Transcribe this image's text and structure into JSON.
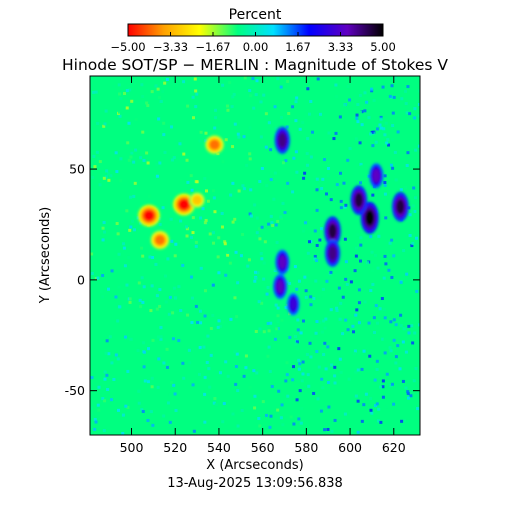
{
  "colorbar": {
    "label": "Percent",
    "ticks": [
      "−5.00",
      "−3.33",
      "−1.67",
      "0.00",
      "1.67",
      "3.33",
      "5.00"
    ],
    "min": -5,
    "max": 5
  },
  "chart_data": {
    "type": "heatmap",
    "title": "Hinode SOT/SP − MERLIN : Magnitude of Stokes V",
    "xlabel": "X (Arcseconds)",
    "ylabel": "Y (Arcseconds)",
    "xlim": [
      481,
      632
    ],
    "ylim": [
      -70,
      92
    ],
    "xticks": [
      500,
      520,
      540,
      560,
      580,
      600,
      620
    ],
    "yticks": [
      -50,
      0,
      50
    ],
    "grid": false,
    "colorscale": [
      "#ff0000",
      "#ffa000",
      "#ffff00",
      "#00ff80",
      "#00e0ff",
      "#0000ff",
      "#6000c0",
      "#000000"
    ],
    "background_value_percent": 0,
    "features": [
      {
        "polarity": "positive",
        "x": 508,
        "y": 29,
        "peak_percent": -5.0
      },
      {
        "polarity": "positive",
        "x": 524,
        "y": 34,
        "peak_percent": -5.0
      },
      {
        "polarity": "positive",
        "x": 513,
        "y": 18,
        "peak_percent": -4.0
      },
      {
        "polarity": "positive",
        "x": 538,
        "y": 61,
        "peak_percent": -4.0
      },
      {
        "polarity": "positive",
        "x": 530,
        "y": 36,
        "peak_percent": -3.0
      },
      {
        "polarity": "negative",
        "x": 609,
        "y": 28,
        "peak_percent": 5.0
      },
      {
        "polarity": "negative",
        "x": 623,
        "y": 33,
        "peak_percent": 4.5
      },
      {
        "polarity": "negative",
        "x": 592,
        "y": 22,
        "peak_percent": 4.5
      },
      {
        "polarity": "negative",
        "x": 604,
        "y": 36,
        "peak_percent": 4.5
      },
      {
        "polarity": "negative",
        "x": 592,
        "y": 12,
        "peak_percent": 4.0
      },
      {
        "polarity": "negative",
        "x": 569,
        "y": 63,
        "peak_percent": 4.0
      },
      {
        "polarity": "negative",
        "x": 569,
        "y": 8,
        "peak_percent": 3.5
      },
      {
        "polarity": "negative",
        "x": 568,
        "y": -3,
        "peak_percent": 3.5
      },
      {
        "polarity": "negative",
        "x": 612,
        "y": 47,
        "peak_percent": 3.5
      },
      {
        "polarity": "negative",
        "x": 574,
        "y": -11,
        "peak_percent": 3.0
      }
    ]
  },
  "timestamp": "13-Aug-2025 13:09:56.838"
}
